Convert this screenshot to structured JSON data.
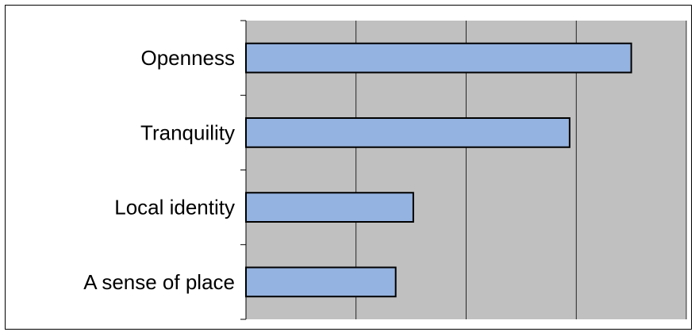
{
  "chart_data": {
    "type": "bar",
    "orientation": "horizontal",
    "categories": [
      "Openness",
      "Tranquility",
      "Local identity",
      "A sense of place"
    ],
    "values": [
      3.5,
      2.94,
      1.52,
      1.36
    ],
    "xlim": [
      0,
      4
    ],
    "x_ticks": [
      0,
      1,
      2,
      3,
      4
    ],
    "show_x_tick_labels": false,
    "title": "",
    "xlabel": "",
    "ylabel": "",
    "grid": "vertical",
    "legend": "none",
    "colors": {
      "bar_fill": "#95b3e0",
      "bar_stroke": "#000000",
      "plot_background": "#c0c0c0",
      "gridline": "#000000"
    }
  }
}
